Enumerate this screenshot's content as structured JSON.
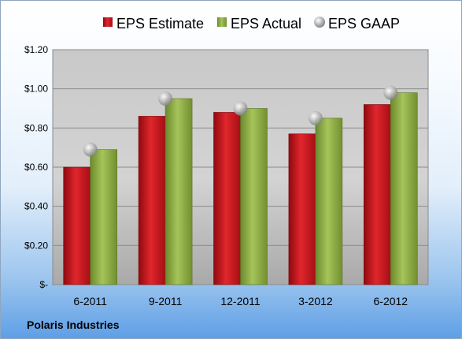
{
  "chart_data": {
    "type": "bar",
    "categories": [
      "6-2011",
      "9-2011",
      "12-2011",
      "3-2012",
      "6-2012"
    ],
    "series": [
      {
        "name": "EPS Estimate",
        "values": [
          0.6,
          0.86,
          0.88,
          0.77,
          0.92
        ],
        "color": "#c8181e",
        "kind": "bar"
      },
      {
        "name": "EPS Actual",
        "values": [
          0.69,
          0.95,
          0.9,
          0.85,
          0.98
        ],
        "color": "#8fae45",
        "kind": "bar"
      },
      {
        "name": "EPS GAAP",
        "values": [
          0.69,
          0.95,
          0.9,
          0.85,
          0.98
        ],
        "color": "#b9b9b9",
        "kind": "marker"
      }
    ],
    "y_ticks": [
      {
        "value": 0,
        "label": "$-"
      },
      {
        "value": 0.2,
        "label": "$0.20"
      },
      {
        "value": 0.4,
        "label": "$0.40"
      },
      {
        "value": 0.6,
        "label": "$0.60"
      },
      {
        "value": 0.8,
        "label": "$0.80"
      },
      {
        "value": 1.0,
        "label": "$1.00"
      },
      {
        "value": 1.2,
        "label": "$1.20"
      }
    ],
    "ylim": [
      0,
      1.2
    ],
    "grid": true,
    "legend_position": "top",
    "footer": "Polaris Industries"
  }
}
